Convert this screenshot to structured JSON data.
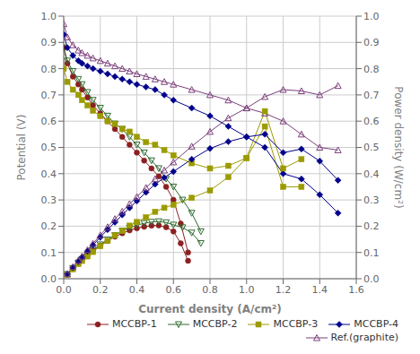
{
  "chart_data": {
    "type": "line",
    "xlabel": "Current density (A/cm²)",
    "ylabel": "Potential (V)",
    "y2label": "Power density (W/cm²)",
    "xlim": [
      0,
      1.6
    ],
    "xticks": [
      {
        "value": 0,
        "label": "0.0"
      },
      0.2,
      0.4,
      0.6,
      0.8,
      {
        "value": 1.0,
        "label": "1.0"
      },
      1.2,
      1.4,
      1.6
    ],
    "ylim": [
      0,
      1.0
    ],
    "yticks": [
      {
        "value": 0,
        "label": "0.0"
      },
      0.1,
      0.2,
      0.3,
      0.4,
      0.5,
      0.6,
      0.7,
      0.8,
      0.9,
      {
        "value": 1.0,
        "label": "1.0"
      }
    ],
    "y2lim": [
      0,
      1.0
    ],
    "y2ticks": [
      {
        "value": 0,
        "label": "0.0"
      },
      0.1,
      0.2,
      0.3,
      0.4,
      0.5,
      0.6,
      0.7,
      0.8,
      0.9,
      {
        "value": 1.0,
        "label": "1.0"
      }
    ],
    "grid": true,
    "legend": "lower right",
    "series": [
      {
        "name": "MCCBP-1",
        "color": "#8B2020",
        "marker": "circle",
        "axis": "y",
        "x": [
          0.0,
          0.02,
          0.05,
          0.08,
          0.1,
          0.13,
          0.16,
          0.2,
          0.24,
          0.28,
          0.32,
          0.36,
          0.4,
          0.44,
          0.48,
          0.52,
          0.56,
          0.6,
          0.64,
          0.68
        ],
        "values": [
          0.88,
          0.82,
          0.77,
          0.74,
          0.72,
          0.69,
          0.66,
          0.63,
          0.6,
          0.57,
          0.54,
          0.51,
          0.48,
          0.45,
          0.42,
          0.39,
          0.35,
          0.3,
          0.21,
          0.1
        ]
      },
      {
        "name": "MCCBP-2",
        "color": "#2E6B2E",
        "marker": "triangle-down-open",
        "axis": "y",
        "x": [
          0.0,
          0.02,
          0.05,
          0.08,
          0.1,
          0.13,
          0.16,
          0.2,
          0.24,
          0.28,
          0.32,
          0.36,
          0.4,
          0.44,
          0.48,
          0.52,
          0.56,
          0.6,
          0.65,
          0.7,
          0.75
        ],
        "values": [
          0.88,
          0.83,
          0.79,
          0.76,
          0.74,
          0.71,
          0.68,
          0.65,
          0.62,
          0.59,
          0.57,
          0.54,
          0.51,
          0.48,
          0.45,
          0.42,
          0.38,
          0.35,
          0.3,
          0.25,
          0.18
        ]
      },
      {
        "name": "MCCBP-3",
        "color": "#9B9B00",
        "marker": "square",
        "axis": "y",
        "x": [
          0.0,
          0.02,
          0.05,
          0.08,
          0.1,
          0.13,
          0.16,
          0.2,
          0.24,
          0.28,
          0.32,
          0.36,
          0.4,
          0.45,
          0.5,
          0.55,
          0.6,
          0.7,
          0.8,
          0.9,
          1.0,
          1.1,
          1.2,
          1.3
        ],
        "values": [
          0.8,
          0.75,
          0.72,
          0.7,
          0.68,
          0.66,
          0.64,
          0.62,
          0.6,
          0.59,
          0.57,
          0.56,
          0.54,
          0.52,
          0.51,
          0.49,
          0.47,
          0.44,
          0.42,
          0.43,
          0.46,
          0.58,
          0.35,
          0.35
        ]
      },
      {
        "name": "MCCBP-4",
        "color": "#00008B",
        "marker": "diamond",
        "axis": "y",
        "x": [
          0.0,
          0.02,
          0.05,
          0.08,
          0.1,
          0.13,
          0.16,
          0.2,
          0.24,
          0.28,
          0.32,
          0.36,
          0.4,
          0.45,
          0.5,
          0.55,
          0.6,
          0.7,
          0.8,
          0.9,
          1.0,
          1.1,
          1.2,
          1.3,
          1.4,
          1.5
        ],
        "values": [
          0.93,
          0.88,
          0.85,
          0.83,
          0.82,
          0.81,
          0.8,
          0.79,
          0.78,
          0.77,
          0.76,
          0.75,
          0.74,
          0.73,
          0.72,
          0.7,
          0.68,
          0.65,
          0.62,
          0.58,
          0.54,
          0.5,
          0.4,
          0.38,
          0.32,
          0.25
        ]
      },
      {
        "name": "Ref.(graphite)",
        "color": "#7B3F7B",
        "marker": "triangle-up-open",
        "axis": "y",
        "x": [
          0.0,
          0.02,
          0.05,
          0.08,
          0.1,
          0.13,
          0.16,
          0.2,
          0.24,
          0.28,
          0.32,
          0.36,
          0.4,
          0.45,
          0.5,
          0.55,
          0.6,
          0.7,
          0.8,
          0.9,
          1.0,
          1.1,
          1.2,
          1.3,
          1.4,
          1.5
        ],
        "values": [
          0.97,
          0.92,
          0.89,
          0.87,
          0.86,
          0.85,
          0.84,
          0.83,
          0.82,
          0.81,
          0.8,
          0.79,
          0.78,
          0.77,
          0.76,
          0.75,
          0.74,
          0.72,
          0.7,
          0.68,
          0.65,
          0.63,
          0.6,
          0.55,
          0.5,
          0.49
        ]
      },
      {
        "name": "MCCBP-1",
        "color": "#8B2020",
        "marker": "circle",
        "axis": "y2",
        "x": [
          0.02,
          0.05,
          0.08,
          0.1,
          0.13,
          0.16,
          0.2,
          0.24,
          0.28,
          0.32,
          0.36,
          0.4,
          0.44,
          0.48,
          0.52,
          0.56,
          0.6,
          0.64,
          0.68
        ],
        "values": [
          0.016,
          0.038,
          0.059,
          0.072,
          0.09,
          0.106,
          0.126,
          0.144,
          0.16,
          0.173,
          0.184,
          0.192,
          0.198,
          0.202,
          0.203,
          0.196,
          0.18,
          0.135,
          0.068
        ]
      },
      {
        "name": "MCCBP-2",
        "color": "#2E6B2E",
        "marker": "triangle-down-open",
        "axis": "y2",
        "x": [
          0.02,
          0.05,
          0.08,
          0.1,
          0.13,
          0.16,
          0.2,
          0.24,
          0.28,
          0.32,
          0.36,
          0.4,
          0.44,
          0.48,
          0.52,
          0.56,
          0.6,
          0.65,
          0.7,
          0.75
        ],
        "values": [
          0.017,
          0.04,
          0.061,
          0.074,
          0.092,
          0.109,
          0.13,
          0.149,
          0.165,
          0.182,
          0.194,
          0.204,
          0.211,
          0.216,
          0.218,
          0.214,
          0.205,
          0.195,
          0.175,
          0.135
        ]
      },
      {
        "name": "MCCBP-3",
        "color": "#9B9B00",
        "marker": "square",
        "axis": "y2",
        "x": [
          0.02,
          0.05,
          0.08,
          0.1,
          0.13,
          0.16,
          0.2,
          0.24,
          0.28,
          0.32,
          0.36,
          0.4,
          0.45,
          0.5,
          0.55,
          0.6,
          0.7,
          0.8,
          0.9,
          1.0,
          1.1,
          1.2,
          1.3
        ],
        "values": [
          0.015,
          0.036,
          0.056,
          0.068,
          0.085,
          0.102,
          0.124,
          0.144,
          0.165,
          0.182,
          0.202,
          0.216,
          0.234,
          0.255,
          0.27,
          0.282,
          0.308,
          0.336,
          0.387,
          0.46,
          0.638,
          0.42,
          0.455
        ]
      },
      {
        "name": "MCCBP-4",
        "color": "#00008B",
        "marker": "diamond",
        "axis": "y2",
        "x": [
          0.02,
          0.05,
          0.08,
          0.1,
          0.13,
          0.16,
          0.2,
          0.24,
          0.28,
          0.32,
          0.36,
          0.4,
          0.45,
          0.5,
          0.55,
          0.6,
          0.7,
          0.8,
          0.9,
          1.0,
          1.1,
          1.2,
          1.3,
          1.4,
          1.5
        ],
        "values": [
          0.018,
          0.043,
          0.066,
          0.082,
          0.105,
          0.128,
          0.158,
          0.187,
          0.215,
          0.243,
          0.27,
          0.296,
          0.329,
          0.36,
          0.385,
          0.408,
          0.455,
          0.496,
          0.522,
          0.54,
          0.55,
          0.48,
          0.494,
          0.448,
          0.375
        ]
      },
      {
        "name": "Ref.(graphite)",
        "color": "#7B3F7B",
        "marker": "triangle-up-open",
        "axis": "y2",
        "x": [
          0.02,
          0.05,
          0.08,
          0.1,
          0.13,
          0.16,
          0.2,
          0.24,
          0.28,
          0.32,
          0.36,
          0.4,
          0.45,
          0.5,
          0.55,
          0.6,
          0.7,
          0.8,
          0.9,
          1.0,
          1.1,
          1.2,
          1.3,
          1.4,
          1.5
        ],
        "values": [
          0.018,
          0.045,
          0.07,
          0.085,
          0.11,
          0.134,
          0.166,
          0.197,
          0.228,
          0.256,
          0.285,
          0.312,
          0.347,
          0.38,
          0.413,
          0.444,
          0.504,
          0.56,
          0.612,
          0.65,
          0.693,
          0.72,
          0.715,
          0.7,
          0.735
        ]
      }
    ]
  }
}
